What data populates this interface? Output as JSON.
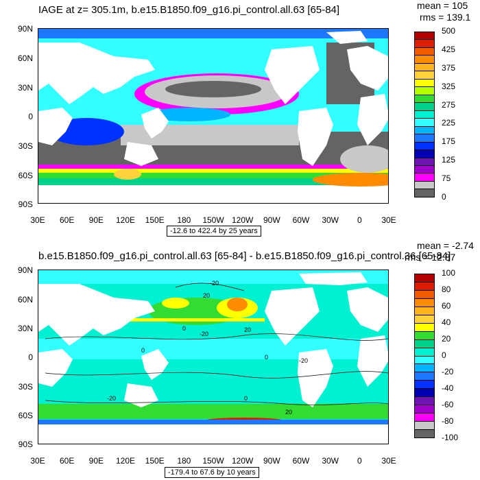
{
  "top": {
    "title": "IAGE at z= 305.1m, b.e15.B1850.f09_g16.pi_control.all.63 [65-84]",
    "mean": "mean = 105",
    "rms": "rms = 139.1",
    "range": "-12.6 to 422.4 by 25 years",
    "colorbar_labels": [
      "500",
      "425",
      "375",
      "325",
      "275",
      "225",
      "175",
      "125",
      "75",
      "0"
    ],
    "colorbar_colors": [
      "#b40000",
      "#dc1e00",
      "#f05a00",
      "#ff8c00",
      "#ffb41e",
      "#ffd23c",
      "#ffff00",
      "#b4ff00",
      "#32dc32",
      "#00d28c",
      "#00f0d2",
      "#32ffff",
      "#00b4ff",
      "#1e78ff",
      "#0032ff",
      "#0000b4",
      "#6e14b4",
      "#a000c8",
      "#ff00ff",
      "#c8c8c8",
      "#646464"
    ]
  },
  "bottom": {
    "title": "b.e15.B1850.f09_g16.pi_control.all.63 [65-84] - b.e15.B1850.f09_g16.pi_control.36 [65-84]",
    "mean": "mean = -2.74",
    "rms": "rms = 12.87",
    "range": "-179.4 to 67.6 by 10 years",
    "colorbar_labels": [
      "100",
      "80",
      "60",
      "40",
      "20",
      "0",
      "-20",
      "-40",
      "-60",
      "-80",
      "-100"
    ],
    "colorbar_colors": [
      "#b40000",
      "#dc1e00",
      "#f05a00",
      "#ff8c00",
      "#ffb41e",
      "#ffd23c",
      "#ffff00",
      "#32dc32",
      "#00d28c",
      "#00f0d2",
      "#32ffff",
      "#00b4ff",
      "#1e78ff",
      "#0032ff",
      "#0000b4",
      "#6e14b4",
      "#a000c8",
      "#ff00ff",
      "#c8c8c8",
      "#646464"
    ],
    "contour_labels": [
      "-20",
      "20",
      "0",
      "-20",
      "20",
      "0",
      "0",
      "-20",
      "0",
      "20",
      "-20"
    ]
  },
  "lat_ticks": [
    "90N",
    "60N",
    "30N",
    "0",
    "30S",
    "60S",
    "90S"
  ],
  "lon_ticks": [
    "30E",
    "60E",
    "90E",
    "120E",
    "150E",
    "180",
    "150W",
    "120W",
    "90W",
    "60W",
    "30W",
    "0",
    "30E"
  ]
}
